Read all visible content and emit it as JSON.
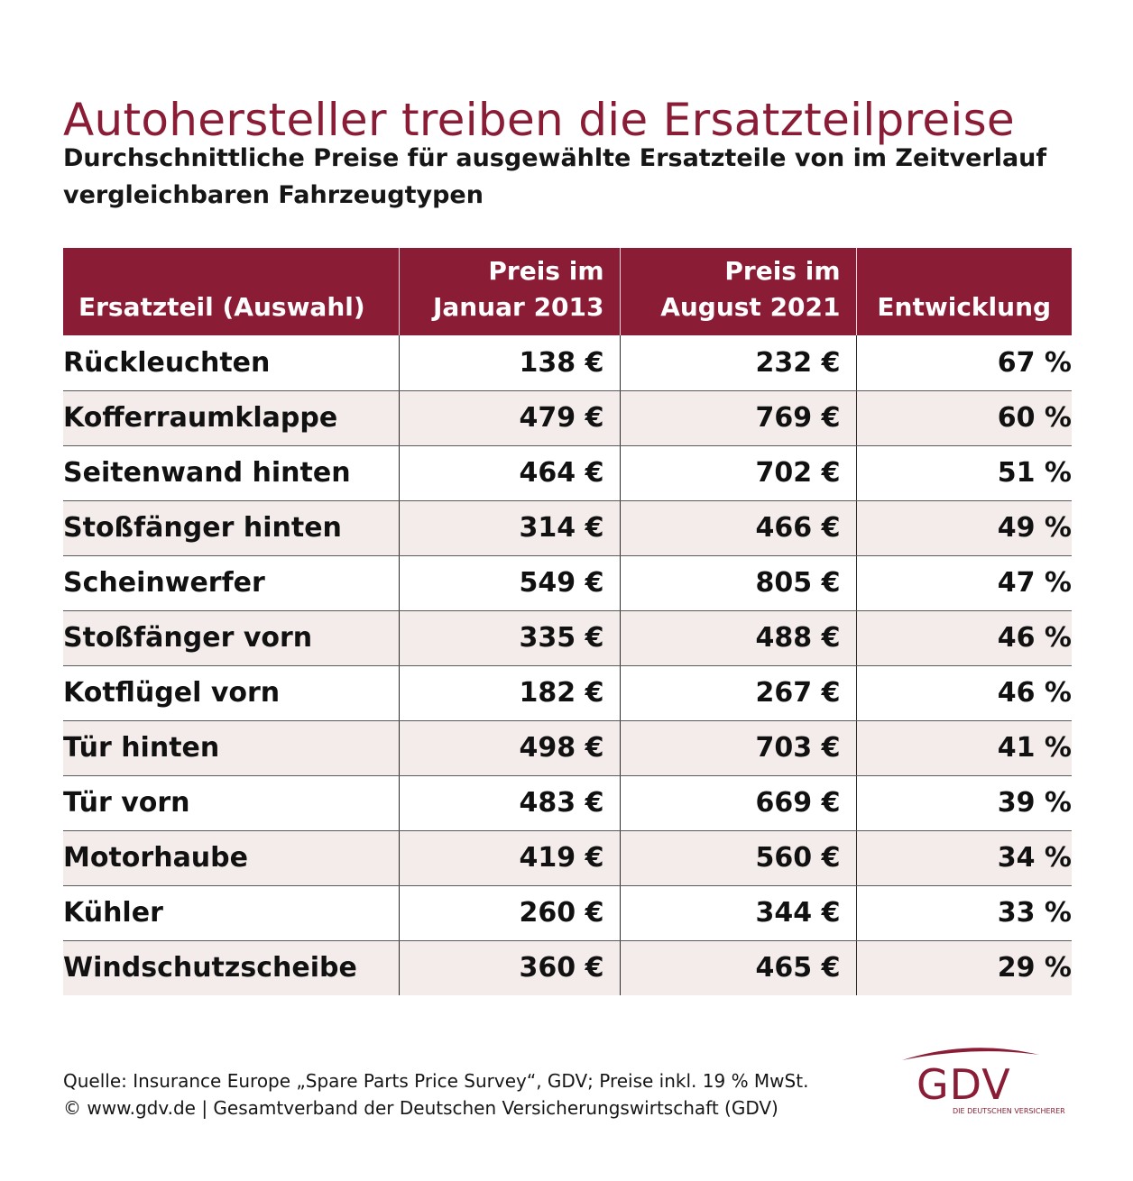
{
  "title": "Autohersteller treiben die Ersatzteilpreise",
  "subtitle": "Durchschnittliche Preise für ausgewählte Ersatzteile von im Zeitverlauf vergleichbaren Fahrzeugtypen",
  "colors": {
    "accent": "#8a1c35",
    "stripe": "#f4ebeb",
    "text": "#111111"
  },
  "chart_data": {
    "type": "table",
    "columns": [
      "Ersatzteil (Auswahl)",
      "Preis im Januar 2013",
      "Preis im August 2021",
      "Entwicklung"
    ],
    "header_lines": [
      [
        "Ersatzteil (Auswahl)"
      ],
      [
        "Preis im",
        "Januar 2013"
      ],
      [
        "Preis im",
        "August 2021"
      ],
      [
        "Entwicklung"
      ]
    ],
    "rows": [
      [
        "Rückleuchten",
        "138 €",
        "232 €",
        "67 %"
      ],
      [
        "Kofferraumklappe",
        "479 €",
        "769 €",
        "60 %"
      ],
      [
        "Seitenwand hinten",
        "464 €",
        "702 €",
        "51 %"
      ],
      [
        "Stoßfänger hinten",
        "314 €",
        "466 €",
        "49 %"
      ],
      [
        "Scheinwerfer",
        "549 €",
        "805 €",
        "47 %"
      ],
      [
        "Stoßfänger vorn",
        "335 €",
        "488 €",
        "46 %"
      ],
      [
        "Kotflügel vorn",
        "182 €",
        "267 €",
        "46 %"
      ],
      [
        "Tür hinten",
        "498 €",
        "703 €",
        "41 %"
      ],
      [
        "Tür vorn",
        "483 €",
        "669 €",
        "39 %"
      ],
      [
        "Motorhaube",
        "419 €",
        "560 €",
        "34 %"
      ],
      [
        "Kühler",
        "260 €",
        "344 €",
        "33 %"
      ],
      [
        "Windschutzscheibe",
        "360 €",
        "465 €",
        "29 %"
      ]
    ]
  },
  "footer": {
    "source": "Quelle: Insurance Europe „Spare Parts Price Survey“, GDV; Preise inkl. 19 % MwSt.",
    "copyright": "© www.gdv.de | Gesamtverband der Deutschen Versicherungswirtschaft (GDV)"
  },
  "logo": {
    "text": "GDV",
    "tagline": "DIE DEUTSCHEN VERSICHERER"
  }
}
